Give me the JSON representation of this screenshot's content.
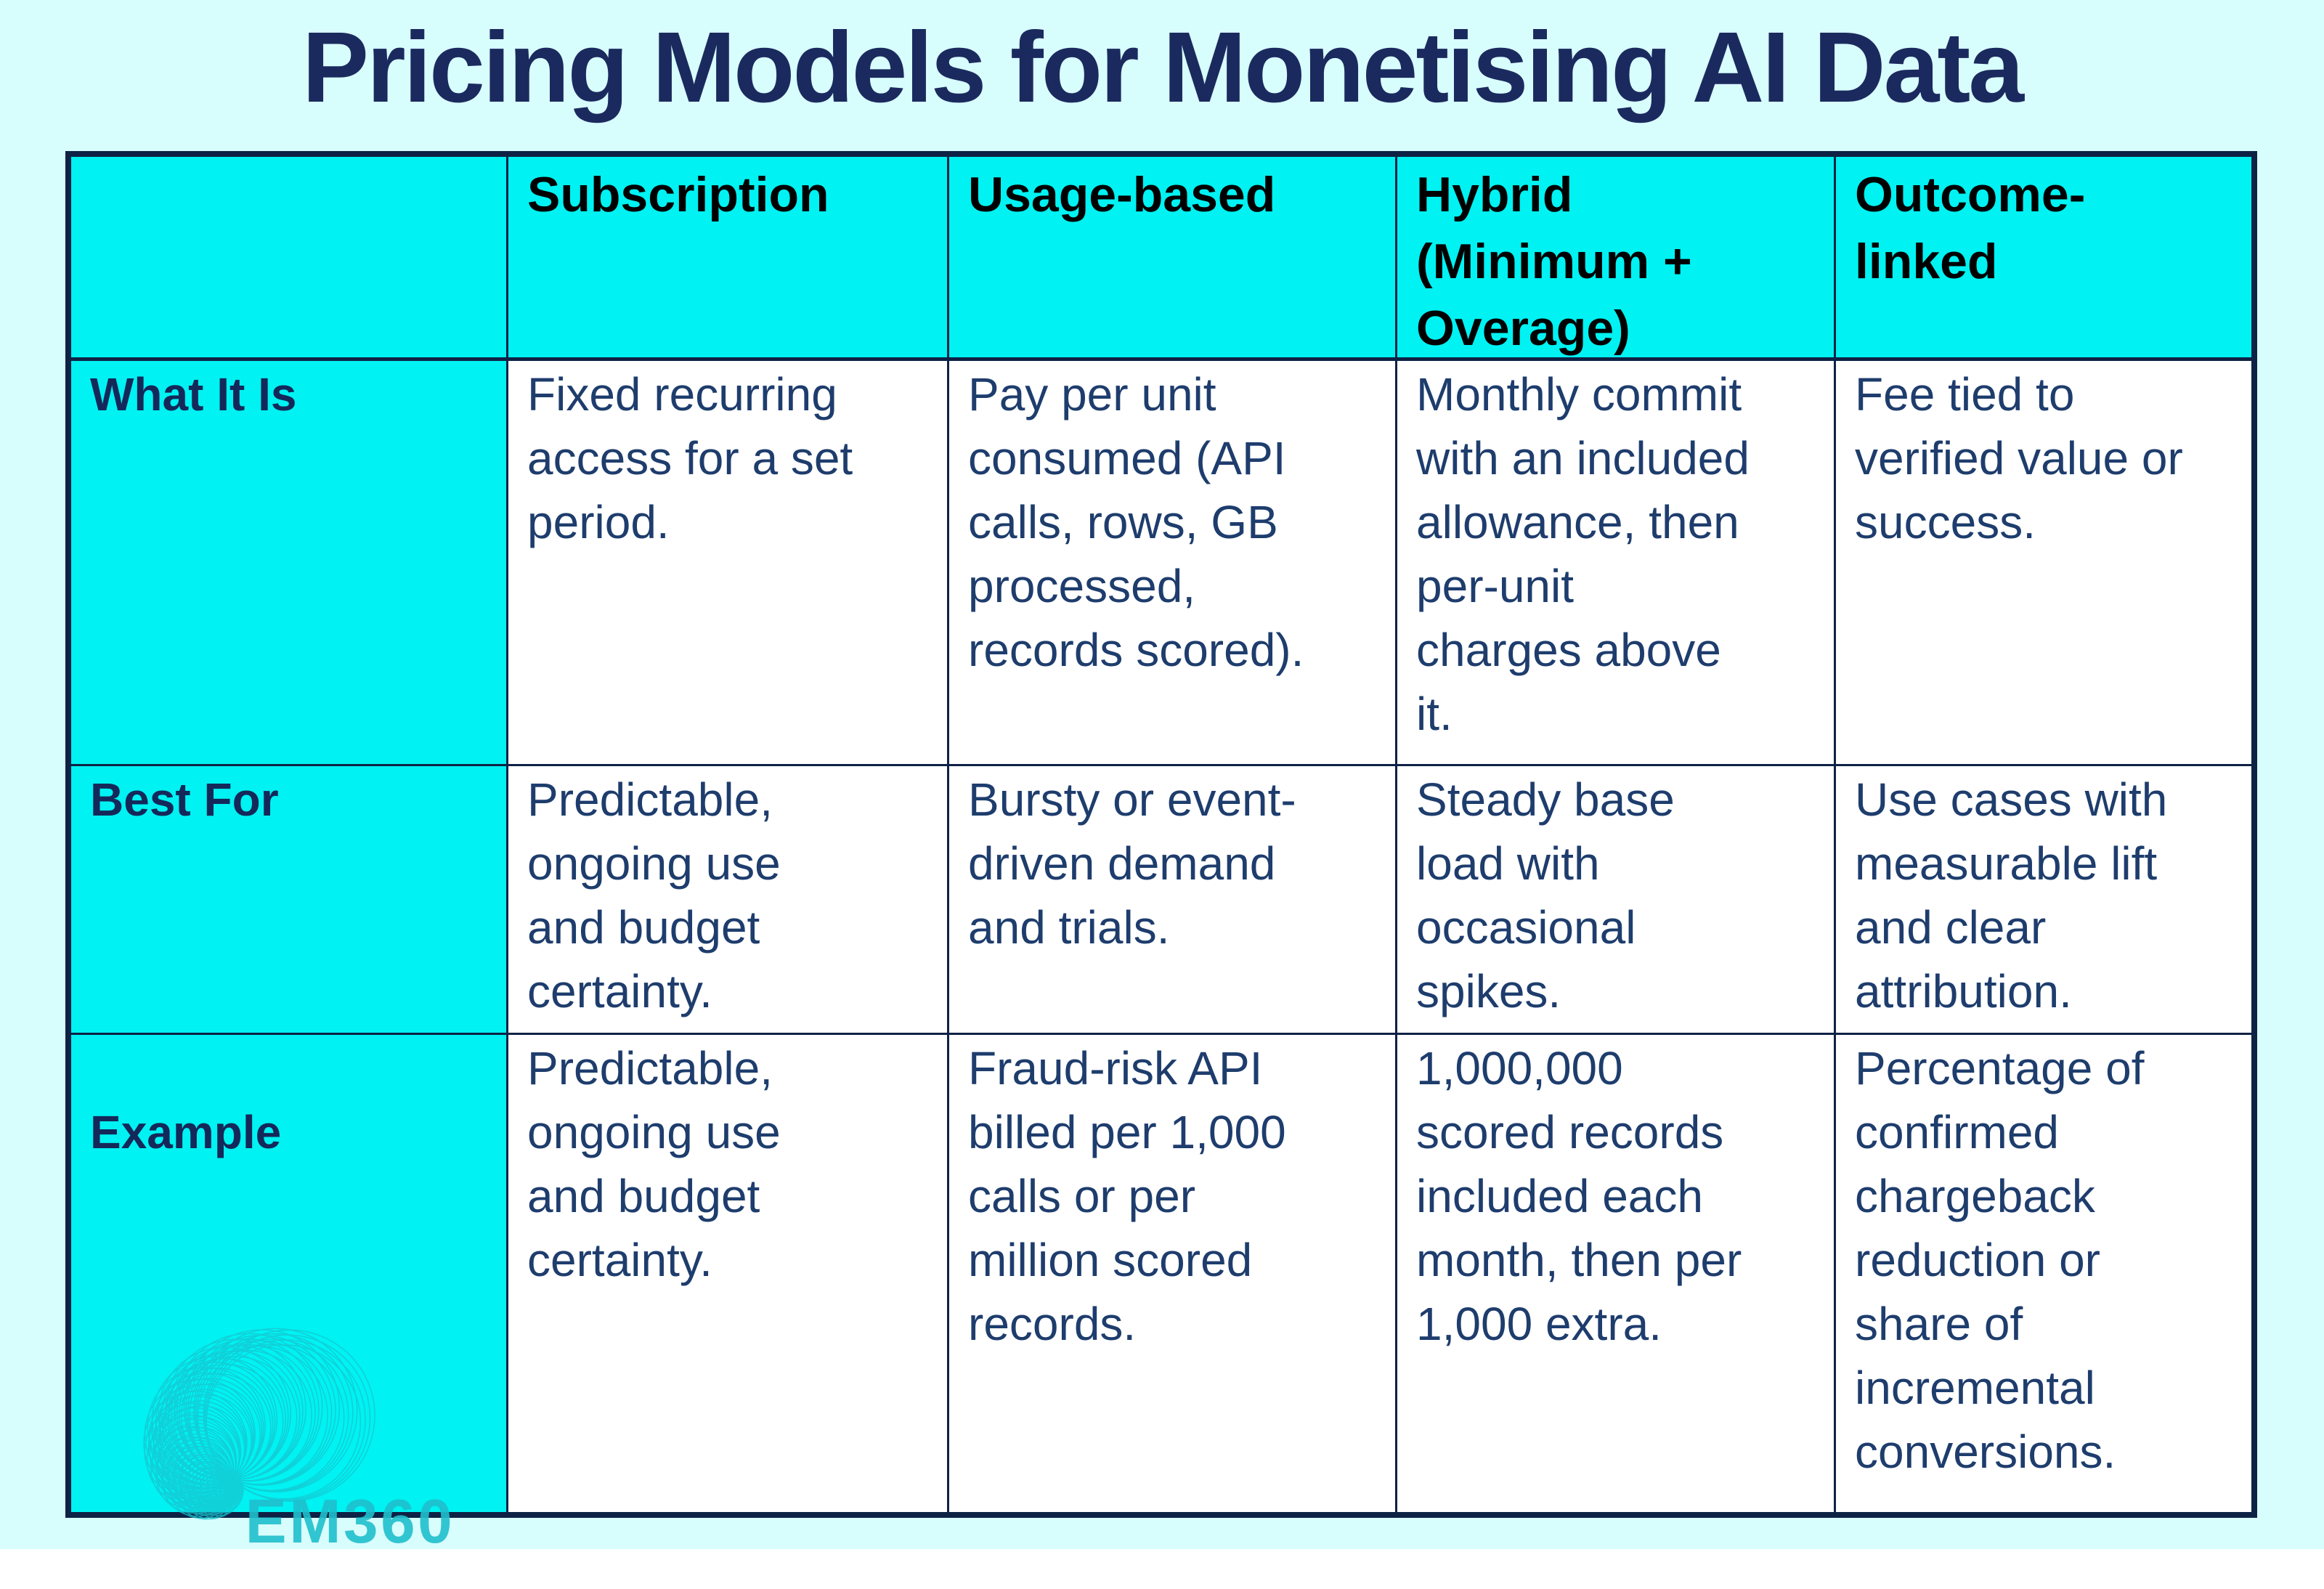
{
  "title": "Pricing Models for Monetising AI Data",
  "colors": {
    "page_background": "#d8fdfd",
    "accent_cyan": "#00f2f2",
    "border_navy": "#0e2245",
    "title_navy": "#1b2a5e",
    "label_navy": "#15285a",
    "body_navy": "#1e3d6d",
    "header_text": "#000000",
    "logo_teal": "#17c5d0"
  },
  "table": {
    "corner": "",
    "columns": [
      "Subscription",
      "Usage-based",
      "Hybrid\n(Minimum +\nOverage)",
      "Outcome-\nlinked"
    ],
    "rows": [
      {
        "label": "What It Is",
        "cells": [
          "Fixed recurring\naccess for a set\nperiod.",
          "Pay per unit\nconsumed (API\ncalls, rows, GB\nprocessed,\nrecords scored).",
          "Monthly commit\nwith an included\nallowance, then\nper-unit\ncharges above\nit.",
          "Fee tied to\nverified value or\nsuccess."
        ]
      },
      {
        "label": "Best For",
        "cells": [
          "Predictable,\nongoing use\nand budget\ncertainty.",
          "Bursty or event-\ndriven demand\nand trials.",
          "Steady base\nload with\noccasional\nspikes.",
          "Use cases with\nmeasurable lift\nand clear\nattribution."
        ]
      },
      {
        "label": "Example",
        "cells": [
          "Predictable,\nongoing use\nand budget\ncertainty.",
          "Fraud-risk API\nbilled per 1,000\ncalls or per\nmillion scored\nrecords.",
          "1,000,000\nscored records\nincluded each\nmonth, then per\n1,000 extra.",
          "Percentage of\nconfirmed\nchargeback\nreduction or\nshare of\nincremental\nconversions."
        ]
      }
    ]
  },
  "logo": {
    "text": "EM360"
  }
}
